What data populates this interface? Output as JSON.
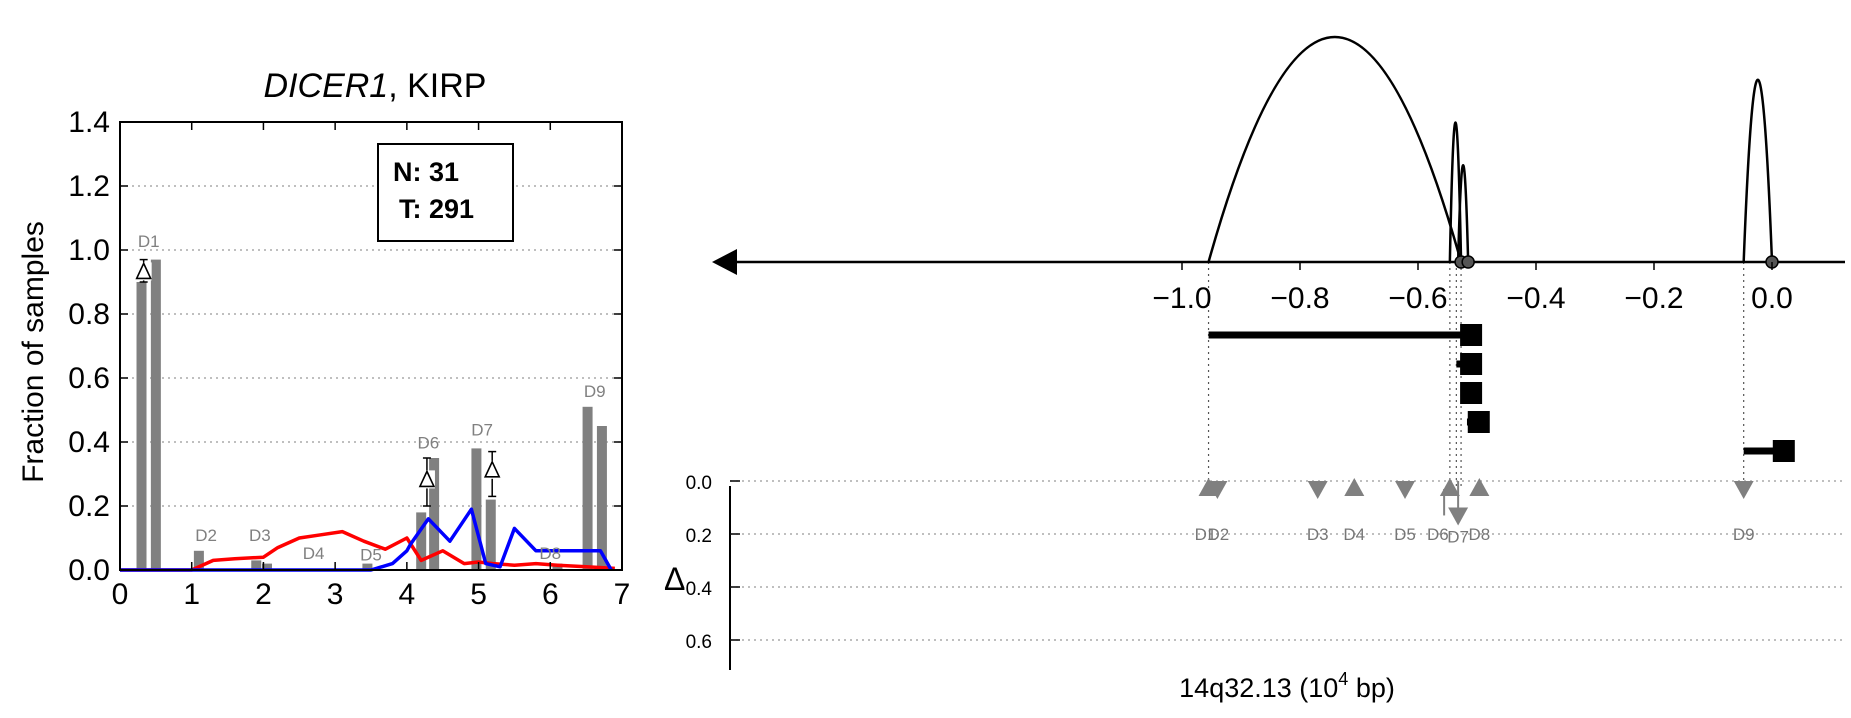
{
  "chart_data": [
    {
      "type": "bar",
      "title_gene": "DICER1",
      "title_rest": ", KIRP",
      "xlabel": "",
      "ylabel": "Fraction of samples",
      "xlim": [
        0,
        7
      ],
      "ylim": [
        0,
        1.4
      ],
      "xticks": [
        "0",
        "1",
        "2",
        "3",
        "4",
        "5",
        "6",
        "7"
      ],
      "yticks": [
        "0.0",
        "0.2",
        "0.4",
        "0.6",
        "0.8",
        "1.0",
        "1.2",
        "1.4"
      ],
      "grid": true,
      "legend_box": {
        "n_label": "N: 31",
        "t_label": "T: 291"
      },
      "bar_color": "#808080",
      "bars": [
        {
          "x": 0.3,
          "value": 0.9
        },
        {
          "x": 0.5,
          "value": 0.97
        },
        {
          "x": 1.1,
          "value": 0.06
        },
        {
          "x": 1.9,
          "value": 0.03
        },
        {
          "x": 2.05,
          "value": 0.02
        },
        {
          "x": 3.45,
          "value": 0.02
        },
        {
          "x": 4.2,
          "value": 0.18
        },
        {
          "x": 4.38,
          "value": 0.35
        },
        {
          "x": 4.97,
          "value": 0.38
        },
        {
          "x": 5.17,
          "value": 0.22
        },
        {
          "x": 6.1,
          "value": 0.02
        },
        {
          "x": 6.52,
          "value": 0.51
        },
        {
          "x": 6.72,
          "value": 0.45
        }
      ],
      "series": [
        {
          "color": "#ff0000",
          "x": [
            0.0,
            1.0,
            1.3,
            1.6,
            2.0,
            2.2,
            2.5,
            2.8,
            3.1,
            3.4,
            3.7,
            4.0,
            4.2,
            4.5,
            4.8,
            5.0,
            5.2,
            5.5,
            5.8,
            6.1,
            6.5,
            6.9
          ],
          "values": [
            0.0,
            0.0,
            0.03,
            0.035,
            0.04,
            0.07,
            0.1,
            0.11,
            0.12,
            0.09,
            0.065,
            0.1,
            0.03,
            0.06,
            0.02,
            0.025,
            0.02,
            0.015,
            0.02,
            0.015,
            0.01,
            0.005
          ]
        },
        {
          "color": "#0000ff",
          "x": [
            0.0,
            3.5,
            3.8,
            4.0,
            4.05,
            4.3,
            4.6,
            4.9,
            5.1,
            5.3,
            5.5,
            5.8,
            6.1,
            6.4,
            6.7,
            6.85
          ],
          "values": [
            0.0,
            0.0,
            0.02,
            0.06,
            0.08,
            0.16,
            0.09,
            0.19,
            0.02,
            0.01,
            0.13,
            0.06,
            0.06,
            0.06,
            0.06,
            0.0
          ]
        }
      ],
      "domain_labels": [
        {
          "text": "D1",
          "x": 0.4,
          "y": 1.01
        },
        {
          "text": "D2",
          "x": 1.2,
          "y": 0.09
        },
        {
          "text": "D3",
          "x": 1.95,
          "y": 0.09
        },
        {
          "text": "D4",
          "x": 2.7,
          "y": 0.035
        },
        {
          "text": "D5",
          "x": 3.5,
          "y": 0.03
        },
        {
          "text": "D6",
          "x": 4.3,
          "y": 0.38
        },
        {
          "text": "D7",
          "x": 5.05,
          "y": 0.42
        },
        {
          "text": "D8",
          "x": 6.0,
          "y": 0.035
        },
        {
          "text": "D9",
          "x": 6.62,
          "y": 0.54
        }
      ],
      "delta_markers": [
        {
          "x": 0.33,
          "y": 0.93,
          "lo": 0.9,
          "hi": 0.97
        },
        {
          "x": 4.28,
          "y": 0.28,
          "lo": 0.2,
          "hi": 0.35
        },
        {
          "x": 5.19,
          "y": 0.31,
          "lo": 0.23,
          "hi": 0.37
        }
      ]
    },
    {
      "type": "scatter",
      "xlabel_text": "14q32.13 (10",
      "xlabel_sup": "4",
      "xlabel_tail": " bp)",
      "xlim": [
        -1.04,
        0.06
      ],
      "xticks": [
        "−1.0",
        "−0.8",
        "−0.6",
        "−0.4",
        "−0.2",
        "0.0"
      ],
      "xtick_values": [
        -1.0,
        -0.8,
        -0.6,
        -0.4,
        -0.2,
        0.0
      ],
      "delta_axis_label": "Δ",
      "yticks": [
        "0.0",
        "0.2",
        "0.4",
        "0.6"
      ],
      "ylim": [
        0.0,
        0.7
      ],
      "marker_color": "#808080",
      "splicing_arcs": [
        {
          "start": -0.955,
          "end": -0.527,
          "height": 1.0
        },
        {
          "start": -0.546,
          "end": -0.527,
          "height": 0.62
        },
        {
          "start": -0.532,
          "end": -0.515,
          "height": 0.43
        },
        {
          "start": -0.048,
          "end": 0.0,
          "height": 0.81
        }
      ],
      "junction_dots": [
        -0.527,
        -0.515,
        0.0
      ],
      "gene_track_bars": [
        {
          "start": -0.955,
          "end": -0.51
        },
        {
          "start": -0.535,
          "end": -0.51
        },
        {
          "start": -0.528,
          "end": -0.51
        },
        {
          "start": -0.517,
          "end": -0.497
        },
        {
          "start": -0.048,
          "end": 0.02
        }
      ],
      "guide_lines": [
        -0.955,
        -0.546,
        -0.535,
        -0.527,
        -0.048
      ],
      "domains": [
        {
          "name": "D1",
          "x": -0.955,
          "delta": 0.03,
          "dir": "up"
        },
        {
          "name": "D2",
          "x": -0.94,
          "delta": 0.03,
          "dir": "down"
        },
        {
          "name": "D3",
          "x": -0.77,
          "delta": 0.03,
          "dir": "down"
        },
        {
          "name": "D4",
          "x": -0.708,
          "delta": 0.03,
          "dir": "up"
        },
        {
          "name": "D5",
          "x": -0.622,
          "delta": 0.03,
          "dir": "down"
        },
        {
          "name": "D6",
          "x": -0.546,
          "delta": 0.03,
          "dir": "up"
        },
        {
          "name": "D7",
          "x": -0.532,
          "delta": 0.13,
          "dir": "down"
        },
        {
          "name": "D8",
          "x": -0.496,
          "delta": 0.03,
          "dir": "up"
        },
        {
          "name": "D9",
          "x": -0.048,
          "delta": 0.03,
          "dir": "down"
        }
      ]
    }
  ]
}
